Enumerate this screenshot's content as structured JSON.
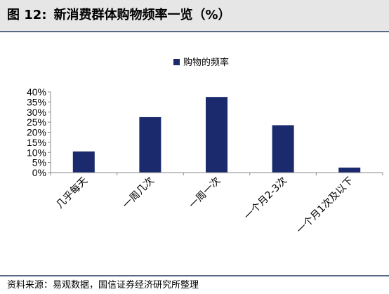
{
  "figure": {
    "label": "图 12:",
    "title": "新消费群体购物频率一览（%）",
    "source": "资料来源：易观数据，国信证券经济研究所整理"
  },
  "colors": {
    "bar": "#1a2a6c",
    "axis": "#888888",
    "title_background": "#e6e6e6",
    "rule": "#5a6a82"
  },
  "chart_data": {
    "type": "bar",
    "categories": [
      "几乎每天",
      "一周几次",
      "一周一次",
      "一个月2-3次",
      "一个月1次及以下"
    ],
    "series": [
      {
        "name": "购物的频率",
        "values": [
          10.5,
          27.5,
          37.5,
          23.5,
          2.5
        ]
      }
    ],
    "title": "",
    "xlabel": "",
    "ylabel": "",
    "ylim": [
      0,
      40
    ],
    "y_ticks": [
      0,
      5,
      10,
      15,
      20,
      25,
      30,
      35,
      40
    ],
    "y_tick_labels": [
      "0%",
      "5%",
      "10%",
      "15%",
      "20%",
      "25%",
      "30%",
      "35%",
      "40%"
    ],
    "grid": false,
    "legend": "top-center"
  }
}
